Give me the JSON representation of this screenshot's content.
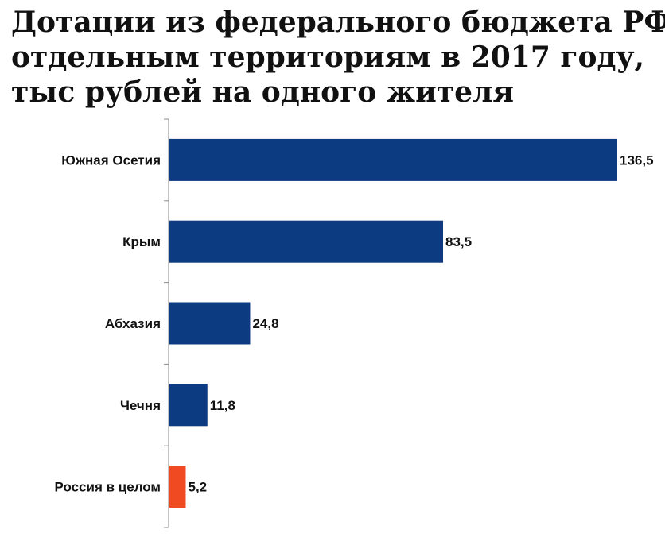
{
  "chart_data": {
    "type": "bar",
    "orientation": "horizontal",
    "title_lines": [
      "Дотации из федерального бюджета РФ",
      "отдельным территориям в 2017 году,",
      "тыс рублей на одного жителя"
    ],
    "categories": [
      "Южная Осетия",
      "Крым",
      "Абхазия",
      "Чечня",
      "Россия в целом"
    ],
    "values": [
      136.5,
      83.5,
      24.8,
      11.8,
      5.2
    ],
    "value_labels": [
      "136,5",
      "83,5",
      "24,8",
      "11,8",
      "5,2"
    ],
    "colors": [
      "#0d3b82",
      "#0d3b82",
      "#0d3b82",
      "#0d3b82",
      "#f04a23"
    ],
    "xlim": [
      0,
      136.5
    ],
    "grid": false,
    "legend": "none"
  }
}
